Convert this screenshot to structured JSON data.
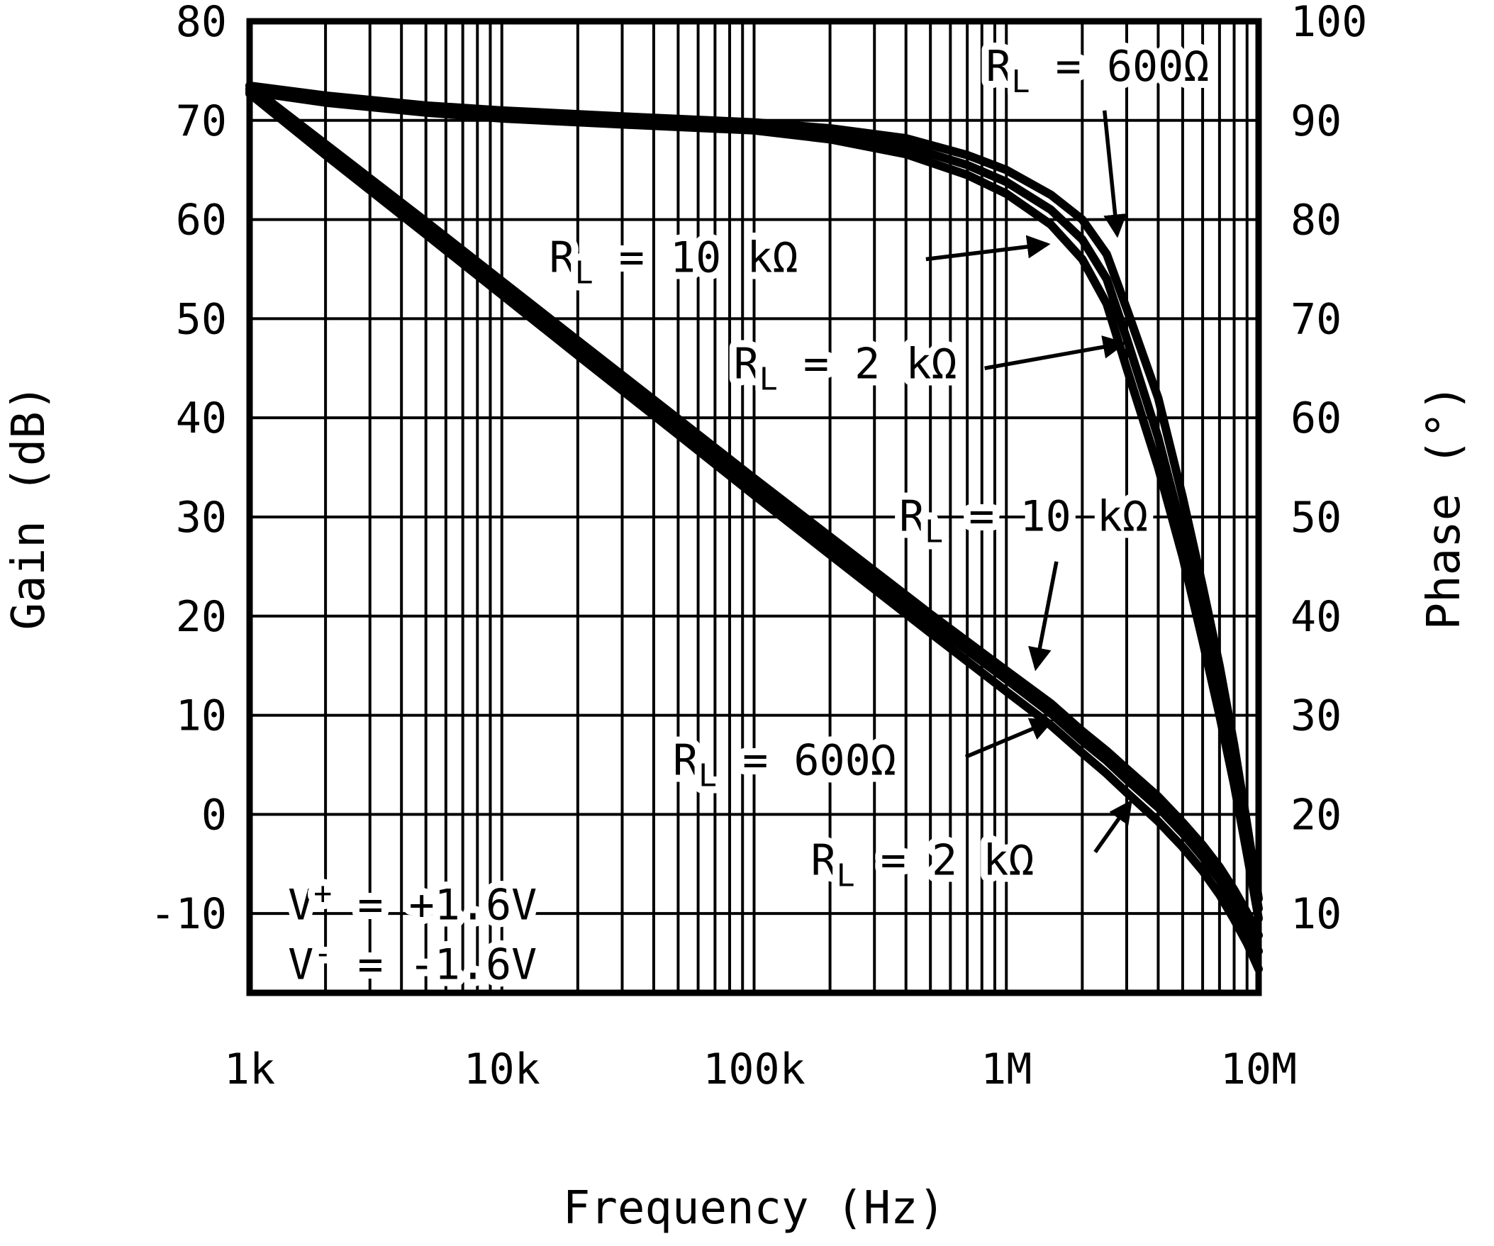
{
  "figure": {
    "background": "#ffffff",
    "foreground": "#000000"
  },
  "chart_data": {
    "type": "line",
    "title": "",
    "xlabel": "Frequency (Hz)",
    "ylabel_left": "Gain (dB)",
    "ylabel_right": "Phase (°)",
    "x_scale": "log",
    "xlim": [
      1000,
      10000000
    ],
    "x_ticks": [
      {
        "v": 1000,
        "label": "1k"
      },
      {
        "v": 10000,
        "label": "10k"
      },
      {
        "v": 100000,
        "label": "100k"
      },
      {
        "v": 1000000,
        "label": "1M"
      },
      {
        "v": 10000000,
        "label": "10M"
      }
    ],
    "gain_axis": {
      "min": -18,
      "max": 80,
      "tick_step": 10,
      "tick_labels": [
        80,
        70,
        60,
        50,
        40,
        30,
        20,
        10,
        0,
        -10
      ]
    },
    "phase_axis": {
      "tick_labels": [
        100,
        90,
        80,
        70,
        60,
        50,
        40,
        30,
        20,
        10
      ],
      "gain_offset": -20
    },
    "grid": {
      "horizontal_every_db": 10,
      "vertical": "log-decades-with-minors",
      "grid_on": true
    },
    "legend_position": "none (inline arrowed labels)",
    "series": [
      {
        "name": "phase-RL-600",
        "label": "RL = 600Ω",
        "axis": "phase",
        "points": [
          [
            1000,
            93.5
          ],
          [
            2000,
            92.5
          ],
          [
            5000,
            91.5
          ],
          [
            10000,
            91
          ],
          [
            30000,
            90.4
          ],
          [
            100000,
            89.8
          ],
          [
            200000,
            89.2
          ],
          [
            400000,
            88.2
          ],
          [
            700000,
            86.5
          ],
          [
            1000000,
            85
          ],
          [
            1500000,
            82.5
          ],
          [
            2000000,
            80
          ],
          [
            2500000,
            76.5
          ],
          [
            3000000,
            71
          ],
          [
            4000000,
            62
          ],
          [
            5000000,
            52
          ],
          [
            6000000,
            43
          ],
          [
            7000000,
            35
          ],
          [
            8000000,
            27
          ],
          [
            9000000,
            19
          ],
          [
            10000000,
            11.5
          ]
        ]
      },
      {
        "name": "phase-RL-2k",
        "label": "RL = 2 kΩ",
        "axis": "phase",
        "points": [
          [
            1000,
            93.2
          ],
          [
            2000,
            92.1
          ],
          [
            5000,
            91.1
          ],
          [
            10000,
            90.6
          ],
          [
            30000,
            90
          ],
          [
            100000,
            89.4
          ],
          [
            200000,
            88.6
          ],
          [
            400000,
            87.4
          ],
          [
            700000,
            85.5
          ],
          [
            1000000,
            83.8
          ],
          [
            1500000,
            81
          ],
          [
            2000000,
            78
          ],
          [
            2500000,
            74
          ],
          [
            3000000,
            68
          ],
          [
            4000000,
            58
          ],
          [
            5000000,
            48.5
          ],
          [
            6000000,
            40
          ],
          [
            7000000,
            32
          ],
          [
            8000000,
            24.5
          ],
          [
            9000000,
            17
          ],
          [
            10000000,
            10.5
          ]
        ]
      },
      {
        "name": "phase-RL-10k",
        "label": "RL = 10 kΩ",
        "axis": "phase",
        "points": [
          [
            1000,
            92.9
          ],
          [
            2000,
            91.8
          ],
          [
            5000,
            90.8
          ],
          [
            10000,
            90.2
          ],
          [
            30000,
            89.6
          ],
          [
            100000,
            89
          ],
          [
            200000,
            88.1
          ],
          [
            400000,
            86.6
          ],
          [
            700000,
            84.5
          ],
          [
            1000000,
            82.6
          ],
          [
            1500000,
            79.5
          ],
          [
            2000000,
            76
          ],
          [
            2500000,
            71.5
          ],
          [
            3000000,
            65
          ],
          [
            4000000,
            55
          ],
          [
            5000000,
            46
          ],
          [
            6000000,
            37.5
          ],
          [
            7000000,
            30
          ],
          [
            8000000,
            23
          ],
          [
            9000000,
            16
          ],
          [
            10000000,
            9.5
          ]
        ]
      },
      {
        "name": "gain-RL-10k",
        "label": "RL = 10 kΩ",
        "axis": "gain",
        "points": [
          [
            1000,
            73.5
          ],
          [
            2000,
            67.6
          ],
          [
            5000,
            59.8
          ],
          [
            10000,
            53.8
          ],
          [
            20000,
            47.8
          ],
          [
            50000,
            39.9
          ],
          [
            100000,
            33.9
          ],
          [
            200000,
            28
          ],
          [
            500000,
            20.2
          ],
          [
            1000000,
            14.5
          ],
          [
            1500000,
            11.2
          ],
          [
            2000000,
            8.4
          ],
          [
            2500000,
            6.4
          ],
          [
            3000000,
            4.6
          ],
          [
            4000000,
            1.8
          ],
          [
            5000000,
            -0.8
          ],
          [
            6000000,
            -3.1
          ],
          [
            7000000,
            -5.3
          ],
          [
            8000000,
            -7.6
          ],
          [
            9000000,
            -9.9
          ],
          [
            10000000,
            -12.2
          ]
        ]
      },
      {
        "name": "gain-RL-2k",
        "label": "RL = 2 kΩ",
        "axis": "gain",
        "points": [
          [
            1000,
            73.1
          ],
          [
            2000,
            67.1
          ],
          [
            5000,
            59.2
          ],
          [
            10000,
            53.2
          ],
          [
            20000,
            47.1
          ],
          [
            50000,
            39.2
          ],
          [
            100000,
            33.1
          ],
          [
            200000,
            27.2
          ],
          [
            500000,
            19.3
          ],
          [
            1000000,
            13.6
          ],
          [
            1500000,
            10.2
          ],
          [
            2000000,
            7.4
          ],
          [
            2500000,
            5.4
          ],
          [
            3000000,
            3.5
          ],
          [
            4000000,
            0.7
          ],
          [
            5000000,
            -1.9
          ],
          [
            6000000,
            -4.3
          ],
          [
            7000000,
            -6.6
          ],
          [
            8000000,
            -9
          ],
          [
            9000000,
            -11.4
          ],
          [
            10000000,
            -13.8
          ]
        ]
      },
      {
        "name": "gain-RL-600",
        "label": "RL = 600Ω",
        "axis": "gain",
        "points": [
          [
            1000,
            72.7
          ],
          [
            2000,
            66.5
          ],
          [
            5000,
            58.5
          ],
          [
            10000,
            52.4
          ],
          [
            20000,
            46.3
          ],
          [
            50000,
            38.3
          ],
          [
            100000,
            32.2
          ],
          [
            200000,
            26.2
          ],
          [
            500000,
            18.3
          ],
          [
            1000000,
            12.4
          ],
          [
            1500000,
            9
          ],
          [
            2000000,
            6.2
          ],
          [
            2500000,
            4.1
          ],
          [
            3000000,
            2.2
          ],
          [
            4000000,
            -0.7
          ],
          [
            5000000,
            -3.3
          ],
          [
            6000000,
            -5.7
          ],
          [
            7000000,
            -8.1
          ],
          [
            8000000,
            -10.6
          ],
          [
            9000000,
            -13
          ],
          [
            10000000,
            -15.6
          ]
        ]
      }
    ],
    "annotations": [
      {
        "name": "label-phase-rl-600",
        "parts": [
          {
            "t": "R"
          },
          {
            "t": "L",
            "sub": true
          },
          {
            "t": " = 600Ω"
          }
        ],
        "at": [
          2300000,
          74
        ],
        "anchor": "middle",
        "arrow": {
          "from": [
            2450000,
            71
          ],
          "to": [
            2750000,
            58.5
          ]
        }
      },
      {
        "name": "label-phase-rl-10k",
        "parts": [
          {
            "t": "R"
          },
          {
            "t": "L",
            "sub": true
          },
          {
            "t": " = 10 kΩ"
          }
        ],
        "at": [
          48000,
          54.7
        ],
        "anchor": "middle",
        "arrow": {
          "from": [
            480000,
            56
          ],
          "to": [
            1450000,
            57.5
          ]
        }
      },
      {
        "name": "label-phase-rl-2k",
        "parts": [
          {
            "t": "R"
          },
          {
            "t": "L",
            "sub": true
          },
          {
            "t": " = 2 kΩ"
          }
        ],
        "at": [
          230000,
          44
        ],
        "anchor": "middle",
        "arrow": {
          "from": [
            820000,
            45
          ],
          "to": [
            2900000,
            47.5
          ]
        }
      },
      {
        "name": "label-gain-rl-10k",
        "parts": [
          {
            "t": "R"
          },
          {
            "t": "L",
            "sub": true
          },
          {
            "t": " = 10 kΩ"
          }
        ],
        "at": [
          1170000,
          28.6
        ],
        "anchor": "middle",
        "arrow": {
          "from": [
            1580000,
            25.5
          ],
          "to": [
            1310000,
            14.8
          ]
        }
      },
      {
        "name": "label-gain-rl-600",
        "parts": [
          {
            "t": "R"
          },
          {
            "t": "L",
            "sub": true
          },
          {
            "t": " = 600Ω"
          }
        ],
        "at": [
          132000,
          4
        ],
        "anchor": "middle",
        "arrow": {
          "from": [
            690000,
            5.8
          ],
          "to": [
            1500000,
            9.4
          ]
        }
      },
      {
        "name": "label-gain-rl-2k",
        "parts": [
          {
            "t": "R"
          },
          {
            "t": "L",
            "sub": true
          },
          {
            "t": " = 2 kΩ"
          }
        ],
        "at": [
          465000,
          -6.1
        ],
        "anchor": "middle",
        "arrow": {
          "from": [
            2250000,
            -3.8
          ],
          "to": [
            3100000,
            1.2
          ]
        }
      }
    ],
    "notes": [
      {
        "name": "supply-positive",
        "parts": [
          {
            "t": "V"
          },
          {
            "t": "+",
            "sup": true
          },
          {
            "t": " = +1.6V"
          }
        ],
        "at": [
          1420,
          -10.6
        ]
      },
      {
        "name": "supply-negative",
        "parts": [
          {
            "t": "V"
          },
          {
            "t": "-",
            "sup": true
          },
          {
            "t": " = -1.6V"
          }
        ],
        "at": [
          1420,
          -16.6
        ]
      }
    ]
  }
}
